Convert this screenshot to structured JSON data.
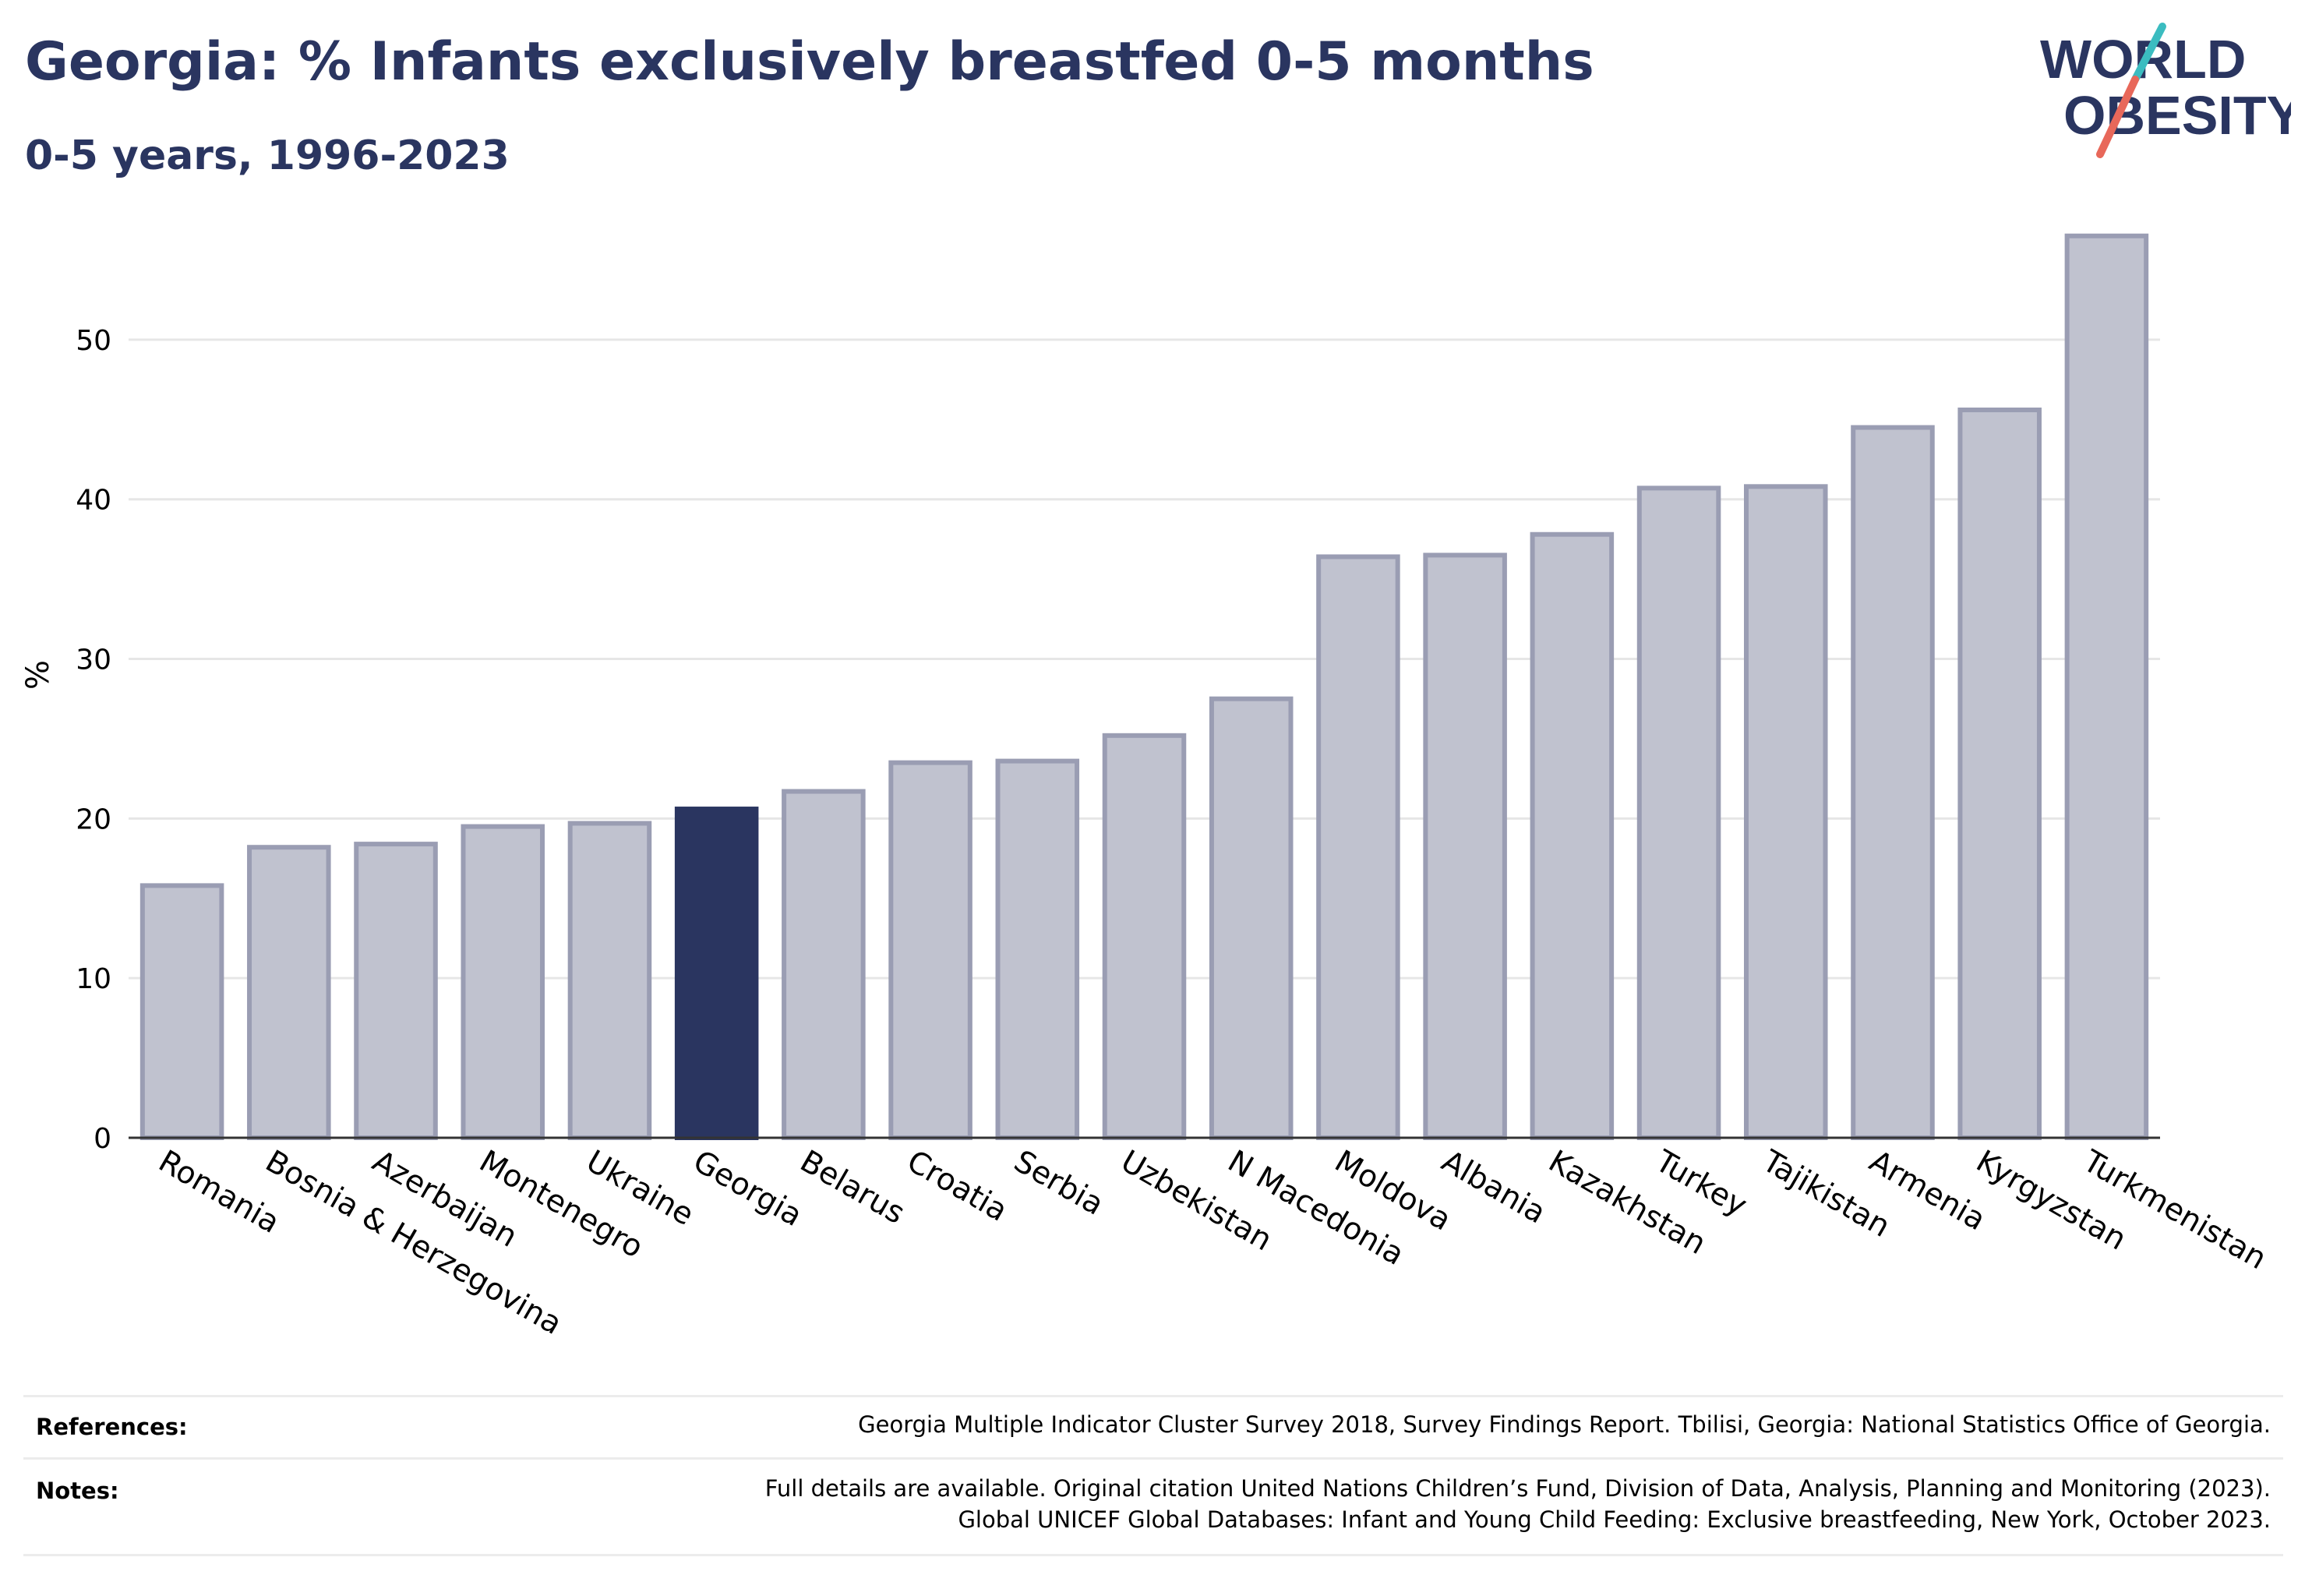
{
  "header": {
    "title": "Georgia: % Infants exclusively breastfed 0-5 months",
    "subtitle": "0-5 years, 1996-2023"
  },
  "logo": {
    "line1": "WORLD",
    "line2": "OBESITY"
  },
  "colors": {
    "highlight": "#2a3560",
    "bar": "#c0c2cf",
    "bar_border": "#9a9db3",
    "grid": "#e6e6e6",
    "logo_teal": "#3bbcc0",
    "logo_coral": "#e8685a"
  },
  "chart_data": {
    "type": "bar",
    "categories": [
      "Romania",
      "Bosnia & Herzegovina",
      "Azerbaijan",
      "Montenegro",
      "Ukraine",
      "Georgia",
      "Belarus",
      "Croatia",
      "Serbia",
      "Uzbekistan",
      "N Macedonia",
      "Moldova",
      "Albania",
      "Kazakhstan",
      "Turkey",
      "Tajikistan",
      "Armenia",
      "Kyrgyzstan",
      "Turkmenistan"
    ],
    "values": [
      15.8,
      18.2,
      18.4,
      19.5,
      19.7,
      20.6,
      21.7,
      23.5,
      23.6,
      25.2,
      27.5,
      36.4,
      36.5,
      37.8,
      40.7,
      40.8,
      44.5,
      45.6,
      56.5
    ],
    "highlight": "Georgia",
    "ylabel": "%",
    "yticks": [
      0,
      10,
      20,
      30,
      40,
      50
    ],
    "ylim": [
      0,
      58
    ],
    "grid": true
  },
  "footer": {
    "references_label": "References:",
    "references_text": "Georgia Multiple Indicator Cluster Survey 2018, Survey Findings Report. Tbilisi, Georgia: National Statistics Office of Georgia.",
    "notes_label": "Notes:",
    "notes_line1": "Full details are available. Original citation United Nations Children’s Fund, Division of Data, Analysis, Planning and Monitoring (2023).",
    "notes_line2": "Global UNICEF Global Databases: Infant and Young Child Feeding: Exclusive breastfeeding, New York, October 2023."
  }
}
